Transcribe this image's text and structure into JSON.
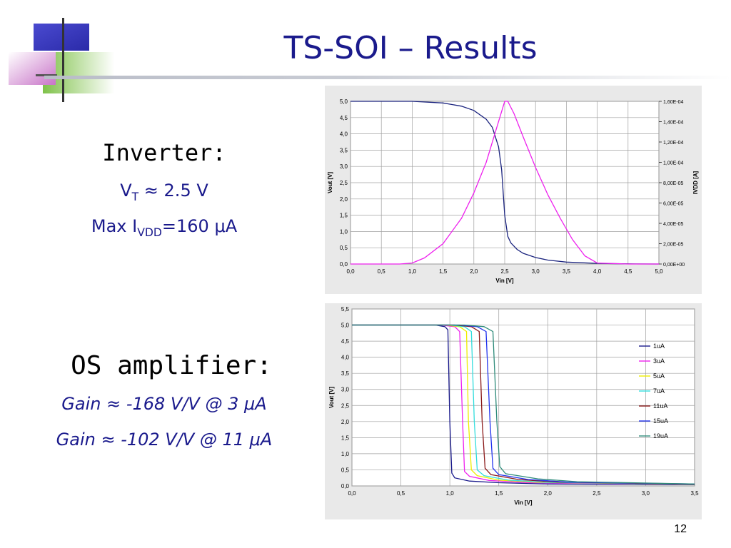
{
  "slide": {
    "title": "TS-SOI – Results",
    "page_number": "12",
    "inverter": {
      "heading": "Inverter:",
      "vt": {
        "prefix": "V",
        "sub": "T",
        "suffix": " ≈ 2.5 V"
      },
      "imax": {
        "prefix": "Max I",
        "sub": "VDD",
        "suffix": "=160 μA"
      }
    },
    "amplifier": {
      "heading": "OS amplifier:",
      "gain1": "Gain ≈ -168 V/V @ 3 μA",
      "gain2": "Gain ≈ -102 V/V @ 11 μA"
    }
  },
  "chart_data": [
    {
      "type": "line",
      "title": "",
      "xlabel": "Vin  [V]",
      "ylabel": "Vout  [V]",
      "y2label": "IVDD  [A]",
      "xlim": [
        0,
        5
      ],
      "ylim": [
        0,
        5
      ],
      "y2lim": [
        0,
        0.00016
      ],
      "x_ticks": [
        "0,0",
        "0,5",
        "1,0",
        "1,5",
        "2,0",
        "2,5",
        "3,0",
        "3,5",
        "4,0",
        "4,5",
        "5,0"
      ],
      "y_ticks": [
        "0,0",
        "0,5",
        "1,0",
        "1,5",
        "2,0",
        "2,5",
        "3,0",
        "3,5",
        "4,0",
        "4,5",
        "5,0"
      ],
      "y2_ticks": [
        "0,00E+00",
        "2,00E-05",
        "4,00E-05",
        "6,00E-05",
        "8,00E-05",
        "1,00E-04",
        "1,20E-04",
        "1,40E-04",
        "1,60E-04"
      ],
      "grid": true,
      "legend": "none",
      "series": [
        {
          "axis": "left",
          "color": "#1a237e",
          "x": [
            0,
            1,
            1.5,
            1.8,
            2.0,
            2.2,
            2.3,
            2.4,
            2.45,
            2.5,
            2.55,
            2.6,
            2.7,
            2.8,
            3.0,
            3.2,
            3.5,
            4.0,
            4.5,
            5.0
          ],
          "y": [
            5.0,
            5.0,
            4.95,
            4.85,
            4.72,
            4.45,
            4.2,
            3.6,
            2.9,
            1.5,
            0.85,
            0.65,
            0.45,
            0.33,
            0.2,
            0.12,
            0.06,
            0.02,
            0.005,
            0.0
          ]
        },
        {
          "axis": "right",
          "color": "#ee22ee",
          "x": [
            0,
            0.8,
            1.0,
            1.2,
            1.5,
            1.8,
            2.0,
            2.2,
            2.35,
            2.5,
            2.55,
            2.65,
            2.8,
            3.0,
            3.2,
            3.4,
            3.6,
            3.8,
            4.0,
            4.5,
            5.0
          ],
          "y": [
            0,
            0,
            1e-06,
            6e-06,
            2e-05,
            4.5e-05,
            7e-05,
            0.0001,
            0.00013,
            0.00016,
            0.00016,
            0.000148,
            0.000125,
            9.5e-05,
            6.8e-05,
            4.5e-05,
            2.4e-05,
            8e-06,
            1e-06,
            0,
            0
          ]
        }
      ]
    },
    {
      "type": "line",
      "title": "",
      "xlabel": "Vin   [V]",
      "ylabel": "Vout   [V]",
      "xlim": [
        0,
        3.5
      ],
      "ylim": [
        0,
        5.5
      ],
      "x_ticks": [
        "0,0",
        "0,5",
        "1,0",
        "1,5",
        "2,0",
        "2,5",
        "3,0",
        "3,5"
      ],
      "y_ticks": [
        "0,0",
        "0,5",
        "1,0",
        "1,5",
        "2,0",
        "2,5",
        "3,0",
        "3,5",
        "4,0",
        "4,5",
        "5,0",
        "5,5"
      ],
      "grid": true,
      "legend": "right",
      "series": [
        {
          "name": "1uA",
          "color": "#1a1a8c",
          "x": [
            0,
            0.85,
            0.95,
            0.98,
            1.0,
            1.02,
            1.05,
            1.2,
            1.5,
            2.0,
            3.5
          ],
          "y": [
            5.0,
            5.0,
            4.95,
            4.85,
            2.0,
            0.4,
            0.25,
            0.15,
            0.1,
            0.06,
            0.04
          ]
        },
        {
          "name": "3uA",
          "color": "#ee22ee",
          "x": [
            0,
            0.9,
            1.05,
            1.1,
            1.13,
            1.15,
            1.2,
            1.4,
            1.8,
            3.5
          ],
          "y": [
            5.0,
            5.0,
            4.95,
            4.8,
            2.0,
            0.45,
            0.3,
            0.17,
            0.1,
            0.05
          ]
        },
        {
          "name": "5uA",
          "color": "#eeee00",
          "x": [
            0,
            0.95,
            1.1,
            1.17,
            1.19,
            1.22,
            1.28,
            1.5,
            1.9,
            3.5
          ],
          "y": [
            5.0,
            5.0,
            4.95,
            4.8,
            2.0,
            0.5,
            0.32,
            0.18,
            0.11,
            0.05
          ]
        },
        {
          "name": "7uA",
          "color": "#33dddd",
          "x": [
            0,
            1.0,
            1.15,
            1.22,
            1.25,
            1.28,
            1.35,
            1.6,
            2.0,
            3.5
          ],
          "y": [
            5.0,
            5.0,
            4.95,
            4.8,
            2.0,
            0.5,
            0.32,
            0.18,
            0.11,
            0.05
          ]
        },
        {
          "name": "11uA",
          "color": "#8b1a1a",
          "x": [
            0,
            1.05,
            1.22,
            1.3,
            1.33,
            1.36,
            1.42,
            1.7,
            2.1,
            3.5
          ],
          "y": [
            5.0,
            5.0,
            4.95,
            4.8,
            2.0,
            0.55,
            0.35,
            0.2,
            0.12,
            0.05
          ]
        },
        {
          "name": "15uA",
          "color": "#2233ee",
          "x": [
            0,
            1.1,
            1.28,
            1.37,
            1.41,
            1.44,
            1.5,
            1.8,
            2.2,
            3.5
          ],
          "y": [
            5.0,
            5.0,
            4.95,
            4.8,
            2.0,
            0.55,
            0.35,
            0.2,
            0.12,
            0.06
          ]
        },
        {
          "name": "19uA",
          "color": "#2e8b7a",
          "x": [
            0,
            1.15,
            1.35,
            1.44,
            1.48,
            1.51,
            1.57,
            1.9,
            2.3,
            3.5
          ],
          "y": [
            5.0,
            5.0,
            4.95,
            4.8,
            2.0,
            0.6,
            0.38,
            0.22,
            0.13,
            0.06
          ]
        }
      ]
    }
  ]
}
